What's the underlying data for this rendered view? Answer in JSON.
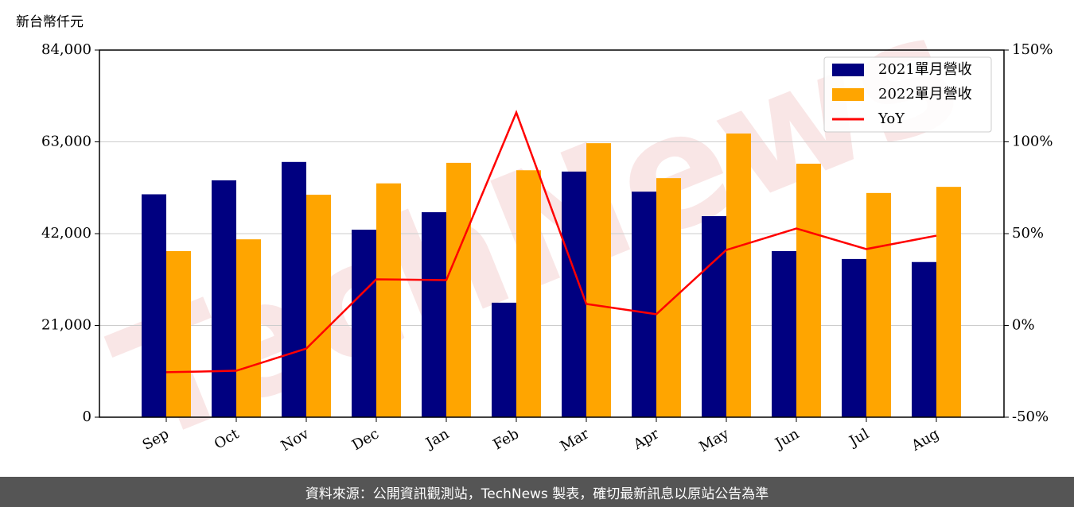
{
  "chart_data": {
    "type": "bar_line",
    "y_label": "新台幣仟元",
    "watermark": "TechNews",
    "categories": [
      "Sep",
      "Oct",
      "Nov",
      "Dec",
      "Jan",
      "Feb",
      "Mar",
      "Apr",
      "May",
      "Jun",
      "Jul",
      "Aug"
    ],
    "series": [
      {
        "name": "2021單月營收",
        "color": "#000080",
        "type": "bar",
        "values": [
          51000,
          54200,
          58400,
          42900,
          46900,
          26200,
          56200,
          51600,
          46000,
          38000,
          36200,
          35500
        ]
      },
      {
        "name": "2022單月營收",
        "color": "#ffa500",
        "type": "bar",
        "values": [
          38000,
          40700,
          50900,
          53500,
          58200,
          56500,
          62700,
          54700,
          64900,
          58000,
          51300,
          52700
        ]
      },
      {
        "name": "YoY",
        "color": "#ff0000",
        "type": "line",
        "axis": "y2",
        "values": [
          -25.5,
          -24.7,
          -12.6,
          25.1,
          24.7,
          116,
          11.7,
          6.1,
          41.1,
          52.8,
          41.6,
          48.9
        ]
      }
    ],
    "ylim": [
      0,
      84000
    ],
    "yticks": [
      {
        "value": 0,
        "label": "0"
      },
      {
        "value": 21000,
        "label": "21,000"
      },
      {
        "value": 42000,
        "label": "42,000"
      },
      {
        "value": 63000,
        "label": "63,000"
      },
      {
        "value": 84000,
        "label": "84,000"
      }
    ],
    "y2lim": [
      -50,
      150
    ],
    "y2ticks": [
      {
        "value": -50,
        "label": "-50%"
      },
      {
        "value": 0,
        "label": "0%"
      },
      {
        "value": 50,
        "label": "50%"
      },
      {
        "value": 100,
        "label": "100%"
      },
      {
        "value": 150,
        "label": "150%"
      }
    ],
    "grid": true,
    "legend": "upper right",
    "footer": "資料來源：公開資訊觀測站，TechNews 製表，確切最新訊息以原站公告為準"
  }
}
